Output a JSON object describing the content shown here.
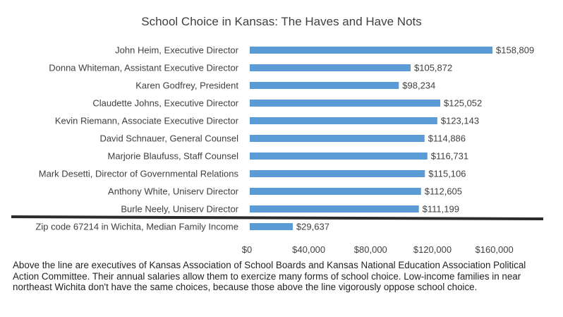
{
  "colors": {
    "bar": "#5B9BD5",
    "text": "#404040",
    "divider": "#2b2b2b"
  },
  "chart_data": {
    "type": "bar",
    "orientation": "horizontal",
    "title": "School Choice in Kansas: The Haves and Have Nots",
    "xlabel": "",
    "ylabel": "",
    "xlim": [
      0,
      180000
    ],
    "grid": false,
    "categories": [
      "John Heim, Executive Director",
      "Donna Whiteman, Assistant Executive Director",
      "Karen Godfrey, President",
      "Claudette Johns, Executive Director",
      "Kevin Riemann, Associate Executive Director",
      "David Schnauer, General Counsel",
      "Marjorie Blaufuss, Staff Counsel",
      "Mark Desetti, Director of Governmental Relations",
      "Anthony White, Uniserv Director",
      "Burle Neely, Uniserv Director",
      "Zip code 67214 in Wichita, Median Family Income"
    ],
    "values": [
      158809,
      105872,
      98234,
      125052,
      123143,
      114886,
      116731,
      115106,
      112605,
      111199,
      29637
    ],
    "data_labels": [
      "$158,809",
      "$105,872",
      "$98,234",
      "$125,052",
      "$123,143",
      "$114,886",
      "$116,731",
      "$115,106",
      "$112,605",
      "$111,199",
      "$29,637"
    ],
    "x_ticks": [
      0,
      40000,
      80000,
      120000,
      160000
    ],
    "x_tick_labels": [
      "$0",
      "$40,000",
      "$80,000",
      "$120,000",
      "$160,000"
    ],
    "annotations": [
      {
        "type": "divider-line",
        "between": [
          "Burle Neely, Uniserv Director",
          "Zip code 67214 in Wichita, Median Family Income"
        ]
      }
    ]
  },
  "caption": "Above the line are executives of Kansas Association of School Boards and Kansas National Education Association Political Action Committee. Their annual salaries allow them to exercize many forms of school choice. Low-income families in near northeast Wichita don't have the same choices, because those above the line vigorously oppose school choice."
}
